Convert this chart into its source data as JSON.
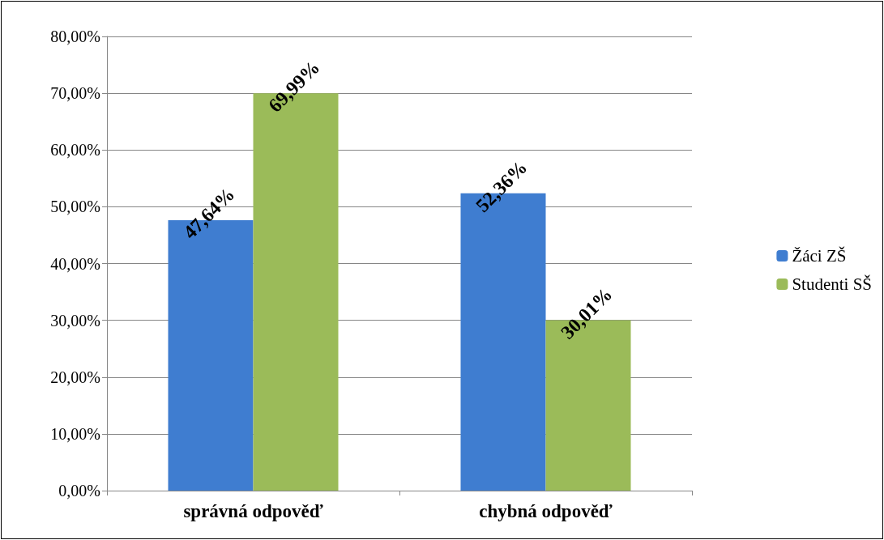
{
  "chart_data": {
    "type": "bar",
    "categories": [
      "správná odpověď",
      "chybná odpověď"
    ],
    "series": [
      {
        "name": "Žáci ZŠ",
        "color": "#3f7dd0",
        "values": [
          47.64,
          52.36
        ],
        "value_labels": [
          "47,64%",
          "52,36%"
        ]
      },
      {
        "name": "Studenti SŠ",
        "color": "#9bbb59",
        "values": [
          69.99,
          30.01
        ],
        "value_labels": [
          "69,99%",
          "30,01%"
        ]
      }
    ],
    "ylim": [
      0,
      80
    ],
    "yticks": [
      {
        "value": 0,
        "label": "0,00%"
      },
      {
        "value": 10,
        "label": "10,00%"
      },
      {
        "value": 20,
        "label": "20,00%"
      },
      {
        "value": 30,
        "label": "30,00%"
      },
      {
        "value": 40,
        "label": "40,00%"
      },
      {
        "value": 50,
        "label": "50,00%"
      },
      {
        "value": 60,
        "label": "60,00%"
      },
      {
        "value": 70,
        "label": "70,00%"
      },
      {
        "value": 80,
        "label": "80,00%"
      }
    ],
    "grid": "y",
    "legend": "right"
  }
}
